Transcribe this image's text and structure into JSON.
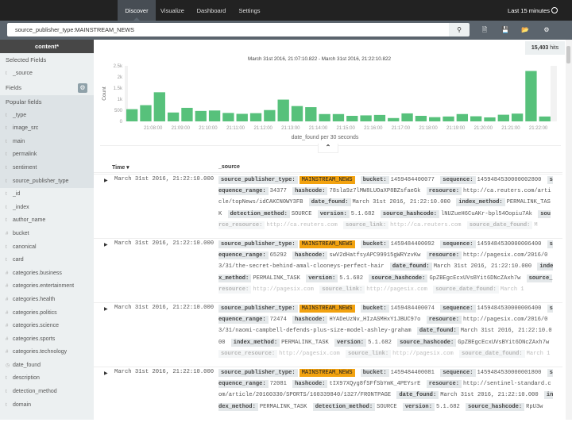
{
  "nav": {
    "tabs": [
      {
        "label": "Discover",
        "active": true
      },
      {
        "label": "Visualize"
      },
      {
        "label": "Dashboard"
      },
      {
        "label": "Settings"
      }
    ],
    "time_range": "Last 15 minutes"
  },
  "search": {
    "query": "source_publisher_type:MAINSTREAM_NEWS",
    "icons": [
      "search-icon",
      "new-search-icon",
      "save-search-icon",
      "open-search-icon",
      "settings-gear-icon"
    ]
  },
  "sidebar": {
    "index_pattern": "content*",
    "selected_header": "Selected Fields",
    "selected": [
      {
        "type": "t",
        "name": "_source"
      }
    ],
    "fields_header": "Fields",
    "popular_header": "Popular fields",
    "popular": [
      {
        "type": "t",
        "name": "_type"
      },
      {
        "type": "t",
        "name": "image_src"
      },
      {
        "type": "t",
        "name": "main"
      },
      {
        "type": "t",
        "name": "permalink"
      },
      {
        "type": "t",
        "name": "sentiment"
      },
      {
        "type": "t",
        "name": "source_publisher_type"
      }
    ],
    "fields": [
      {
        "type": "t",
        "name": "_id"
      },
      {
        "type": "t",
        "name": "_index"
      },
      {
        "type": "t",
        "name": "author_name"
      },
      {
        "type": "#",
        "name": "bucket"
      },
      {
        "type": "t",
        "name": "canonical"
      },
      {
        "type": "t",
        "name": "card"
      },
      {
        "type": "#",
        "name": "categories.business"
      },
      {
        "type": "#",
        "name": "categories.entertainment"
      },
      {
        "type": "#",
        "name": "categories.health"
      },
      {
        "type": "#",
        "name": "categories.politics"
      },
      {
        "type": "#",
        "name": "categories.science"
      },
      {
        "type": "#",
        "name": "categories.sports"
      },
      {
        "type": "#",
        "name": "categories.technology"
      },
      {
        "type": "◷",
        "name": "date_found"
      },
      {
        "type": "t",
        "name": "description"
      },
      {
        "type": "t",
        "name": "detection_method"
      },
      {
        "type": "t",
        "name": "domain"
      }
    ]
  },
  "hits": {
    "count": "15,403",
    "label": "hits"
  },
  "chart_data": {
    "type": "bar",
    "title": "March 31st 2016, 21:07:10.822 - March 31st 2016, 21:22:10.822",
    "xlabel": "date_found per 30 seconds",
    "ylabel": "Count",
    "ylim": [
      0,
      2500
    ],
    "yticks": [
      "0",
      "500",
      "1k",
      "1.5k",
      "2k",
      "2.5k"
    ],
    "xticks": [
      "21:08:00",
      "21:09:00",
      "21:10:00",
      "21:11:00",
      "21:12:00",
      "21:13:00",
      "21:14:00",
      "21:15:00",
      "21:16:00",
      "21:17:00",
      "21:18:00",
      "21:19:00",
      "21:20:00",
      "21:21:00",
      "21:22:00"
    ],
    "x_start": "21:07:00",
    "interval_seconds": 30,
    "values": [
      550,
      730,
      1310,
      400,
      610,
      470,
      490,
      380,
      340,
      370,
      510,
      980,
      690,
      640,
      330,
      330,
      250,
      270,
      290,
      150,
      360,
      250,
      190,
      220,
      330,
      230,
      180,
      300,
      350,
      2270,
      220
    ],
    "color": "#57c17b"
  },
  "table": {
    "headers": {
      "time": "Time",
      "source": "_source"
    },
    "rows": [
      {
        "time": "March 31st 2016, 21:22:10.000",
        "fields": [
          {
            "k": "source_publisher_type:",
            "v": "MAINSTREAM_NEWS",
            "hl": true
          },
          {
            "k": "bucket:",
            "v": "1459484400077"
          },
          {
            "k": "sequence:",
            "v": "1459484530000002800"
          },
          {
            "k": "sequence_range:",
            "v": "34377"
          },
          {
            "k": "hashcode:",
            "v": "78sla9z7lMW8LUOaXP8BZsfaeGk"
          },
          {
            "k": "resource:",
            "v": "http://ca.reuters.com/article/topNews/idCAKCN0WY3FB"
          },
          {
            "k": "date_found:",
            "v": "March 31st 2016, 21:22:10.000"
          },
          {
            "k": "index_method:",
            "v": "PERMALINK_TASK"
          },
          {
            "k": "detection_method:",
            "v": "SOURCE"
          },
          {
            "k": "version:",
            "v": "5.1.682"
          },
          {
            "k": "source_hashcode:",
            "v": "lNUZueH6CuAKr-bpl54Oopiu7Ak"
          },
          {
            "k": "source_resource:",
            "v": "http://ca.reuters.com"
          },
          {
            "k": "source_link:",
            "v": "http://ca.reuters.com"
          },
          {
            "k": "source_date_found:",
            "v": "M"
          }
        ]
      },
      {
        "time": "March 31st 2016, 21:22:10.000",
        "fields": [
          {
            "k": "source_publisher_type:",
            "v": "MAINSTREAM_NEWS",
            "hl": true
          },
          {
            "k": "bucket:",
            "v": "1459484400092"
          },
          {
            "k": "sequence:",
            "v": "1459484530000006400"
          },
          {
            "k": "sequence_range:",
            "v": "65292"
          },
          {
            "k": "hashcode:",
            "v": "swV2dHatfsyAPC99915gWRYzvKw"
          },
          {
            "k": "resource:",
            "v": "http://pagesix.com/2016/03/31/the-secret-behind-amal-clooneys-perfect-hair"
          },
          {
            "k": "date_found:",
            "v": "March 31st 2016, 21:22:10.000"
          },
          {
            "k": "index_method:",
            "v": "PERMALINK_TASK"
          },
          {
            "k": "version:",
            "v": "5.1.682"
          },
          {
            "k": "source_hashcode:",
            "v": "GpZBEgcEcxUVsBYit6DNcZAxh7w"
          },
          {
            "k": "source_resource:",
            "v": "http://pagesix.com"
          },
          {
            "k": "source_link:",
            "v": "http://pagesix.com"
          },
          {
            "k": "source_date_found:",
            "v": "March 1"
          }
        ]
      },
      {
        "time": "March 31st 2016, 21:22:10.000",
        "fields": [
          {
            "k": "source_publisher_type:",
            "v": "MAINSTREAM_NEWS",
            "hl": true
          },
          {
            "k": "bucket:",
            "v": "1459484400074"
          },
          {
            "k": "sequence:",
            "v": "1459484530000006400"
          },
          {
            "k": "sequence_range:",
            "v": "72474"
          },
          {
            "k": "hashcode:",
            "v": "HYADeUzNv_HIzASMHxY1JBUC97o"
          },
          {
            "k": "resource:",
            "v": "http://pagesix.com/2016/03/31/naomi-campbell-defends-plus-size-model-ashley-graham"
          },
          {
            "k": "date_found:",
            "v": "March 31st 2016, 21:22:10.000"
          },
          {
            "k": "index_method:",
            "v": "PERMALINK_TASK"
          },
          {
            "k": "version:",
            "v": "5.1.682"
          },
          {
            "k": "source_hashcode:",
            "v": "GpZBEgcEcxUVsBYit6DNcZAxh7w"
          },
          {
            "k": "source_resource:",
            "v": "http://pagesix.com"
          },
          {
            "k": "source_link:",
            "v": "http://pagesix.com"
          },
          {
            "k": "source_date_found:",
            "v": "March 1"
          }
        ]
      },
      {
        "time": "March 31st 2016, 21:22:10.000",
        "fields": [
          {
            "k": "source_publisher_type:",
            "v": "MAINSTREAM_NEWS",
            "hl": true
          },
          {
            "k": "bucket:",
            "v": "1459484400081"
          },
          {
            "k": "sequence:",
            "v": "1459484530000001800"
          },
          {
            "k": "sequence_range:",
            "v": "72081"
          },
          {
            "k": "hashcode:",
            "v": "tIX97XQyg8fSFfSbYmK_4PEYsrE"
          },
          {
            "k": "resource:",
            "v": "http://sentinel-standard.com/article/20160330/SPORTS/160339840/1327/FRONTPAGE"
          },
          {
            "k": "date_found:",
            "v": "March 31st 2016, 21:22:10.000"
          },
          {
            "k": "index_method:",
            "v": "PERMALINK_TASK"
          },
          {
            "k": "detection_method:",
            "v": "SOURCE"
          },
          {
            "k": "version:",
            "v": "5.1.682"
          },
          {
            "k": "source_hashcode:",
            "v": "RpU3w"
          }
        ]
      }
    ]
  }
}
